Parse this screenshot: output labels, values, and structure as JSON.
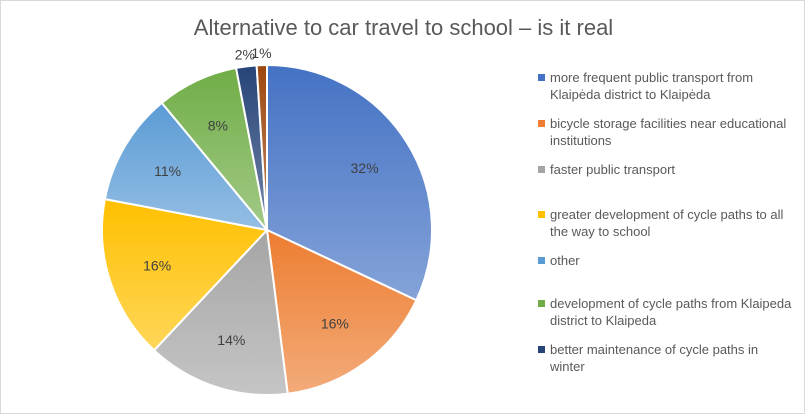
{
  "chart_data": {
    "type": "pie",
    "title": "Alternative to car travel to school – is it real",
    "categories": [
      "more frequent public transport from Klaipėda district to Klaipėda",
      "bicycle storage facilities near educational institutions",
      "faster public transport",
      "greater development of cycle paths to all the way to school",
      "other",
      "development of cycle paths from Klaipeda district to Klaipeda",
      "better maintenance of cycle paths in winter",
      ""
    ],
    "values": [
      32,
      16,
      14,
      16,
      11,
      8,
      2,
      1
    ],
    "data_labels": [
      "32%",
      "16%",
      "14%",
      "16%",
      "11%",
      "8%",
      "2%",
      "1%"
    ],
    "colors": [
      "#4472C4",
      "#ED7D31",
      "#A5A5A5",
      "#FFC000",
      "#5B9BD5",
      "#70AD47",
      "#264478",
      "#9E480E"
    ],
    "legend_position": "right"
  }
}
